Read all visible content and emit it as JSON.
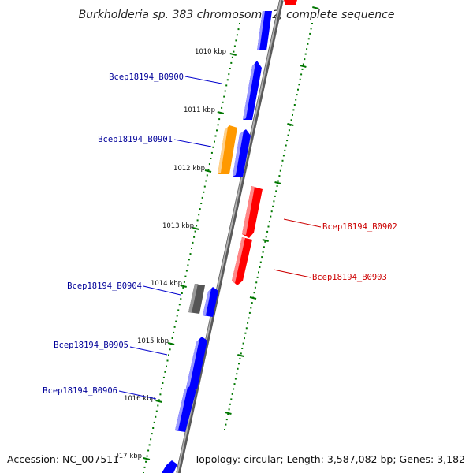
{
  "title": "Burkholderia sp. 383 chromosome 2, complete sequence",
  "footer": {
    "accession": "Accession: NC_007511",
    "summary": "Topology: circular; Length: 3,587,082 bp; Genes: 3,182"
  },
  "ticks": [
    "1010 kbp",
    "1011 kbp",
    "1012 kbp",
    "1013 kbp",
    "1014 kbp",
    "1015 kbp",
    "1016 kbp",
    "1017 kbp"
  ],
  "genes": [
    {
      "id": "Bcep18194_B0900",
      "strand": "forward",
      "color": "#0000ff"
    },
    {
      "id": "Bcep18194_B0901",
      "strand": "forward",
      "color": "#ff9900"
    },
    {
      "id": "Bcep18194_B0902",
      "strand": "reverse",
      "color": "#ff0000"
    },
    {
      "id": "Bcep18194_B0903",
      "strand": "reverse",
      "color": "#ff0000"
    },
    {
      "id": "Bcep18194_B0904",
      "strand": "forward",
      "color": "#555555"
    },
    {
      "id": "Bcep18194_B0905",
      "strand": "forward",
      "color": "#0000ff"
    },
    {
      "id": "Bcep18194_B0906",
      "strand": "forward",
      "color": "#0000ff"
    }
  ],
  "colors": {
    "forward_label": "#000099",
    "reverse_label": "#cc0000",
    "tick": "#007700",
    "backbone": "#888888"
  }
}
